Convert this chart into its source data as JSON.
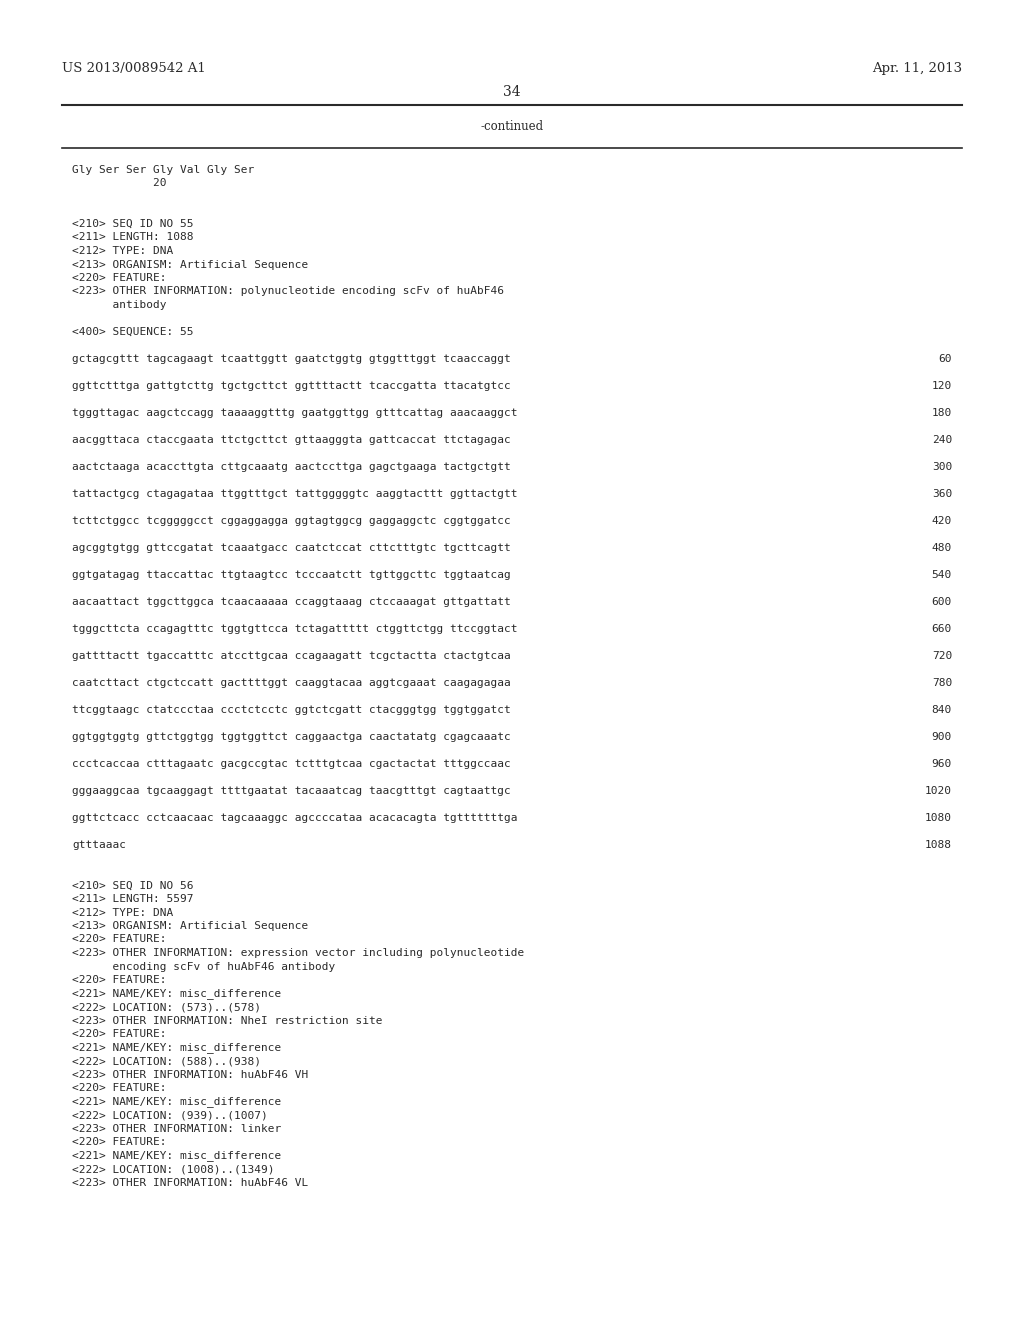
{
  "header_left": "US 2013/0089542 A1",
  "header_right": "Apr. 11, 2013",
  "page_number": "34",
  "continued_text": "-continued",
  "background_color": "#ffffff",
  "body_lines": [
    "Gly Ser Ser Gly Val Gly Ser",
    "            20",
    "",
    "",
    "<210> SEQ ID NO 55",
    "<211> LENGTH: 1088",
    "<212> TYPE: DNA",
    "<213> ORGANISM: Artificial Sequence",
    "<220> FEATURE:",
    "<223> OTHER INFORMATION: polynucleotide encoding scFv of huAbF46",
    "      antibody",
    "",
    "<400> SEQUENCE: 55",
    "",
    "gctagcgttt tagcagaagt tcaattggtt gaatctggtg gtggtttggt tcaaccaggt",
    "",
    "ggttctttga gattgtcttg tgctgcttct ggttttactt tcaccgatta ttacatgtcc",
    "",
    "tgggttagac aagctccagg taaaaggtttg gaatggttgg gtttcattag aaacaaggct",
    "",
    "aacggttaca ctaccgaata ttctgcttct gttaagggta gattcaccat ttctagagac",
    "",
    "aactctaaga acaccttgta cttgcaaatg aactccttga gagctgaaga tactgctgtt",
    "",
    "tattactgcg ctagagataa ttggtttgct tattgggggtc aaggtacttt ggttactgtt",
    "",
    "tcttctggcc tcgggggcct cggaggagga ggtagtggcg gaggaggctc cggtggatcc",
    "",
    "agcggtgtgg gttccgatat tcaaatgacc caatctccat cttctttgtc tgcttcagtt",
    "",
    "ggtgatagag ttaccattac ttgtaagtcc tcccaatctt tgttggcttc tggtaatcag",
    "",
    "aacaattact tggcttggca tcaacaaaaa ccaggtaaag ctccaaagat gttgattatt",
    "",
    "tgggcttcta ccagagtttc tggtgttcca tctagattttt ctggttctgg ttccggtact",
    "",
    "gattttactt tgaccatttc atccttgcaa ccagaagatt tcgctactta ctactgtcaa",
    "",
    "caatcttact ctgctccatt gacttttggt caaggtacaa aggtcgaaat caagagagaa",
    "",
    "ttcggtaagc ctatccctaa ccctctcctc ggtctcgatt ctacgggtgg tggtggatct",
    "",
    "ggtggtggtg gttctggtgg tggtggttct caggaactga caactatatg cgagcaaatc",
    "",
    "ccctcaccaa ctttagaatc gacgccgtac tctttgtcaa cgactactat tttggccaac",
    "",
    "gggaaggcaa tgcaaggagt ttttgaatat tacaaatcag taacgtttgt cagtaattgc",
    "",
    "ggttctcacc cctcaacaac tagcaaaggc agccccataa acacacagta tgtttttttga",
    "",
    "gtttaaac",
    "",
    "",
    "<210> SEQ ID NO 56",
    "<211> LENGTH: 5597",
    "<212> TYPE: DNA",
    "<213> ORGANISM: Artificial Sequence",
    "<220> FEATURE:",
    "<223> OTHER INFORMATION: expression vector including polynucleotide",
    "      encoding scFv of huAbF46 antibody",
    "<220> FEATURE:",
    "<221> NAME/KEY: misc_difference",
    "<222> LOCATION: (573)..(578)",
    "<223> OTHER INFORMATION: NheI restriction site",
    "<220> FEATURE:",
    "<221> NAME/KEY: misc_difference",
    "<222> LOCATION: (588)..(938)",
    "<223> OTHER INFORMATION: huAbF46 VH",
    "<220> FEATURE:",
    "<221> NAME/KEY: misc_difference",
    "<222> LOCATION: (939)..(1007)",
    "<223> OTHER INFORMATION: linker",
    "<220> FEATURE:",
    "<221> NAME/KEY: misc_difference",
    "<222> LOCATION: (1008)..(1349)",
    "<223> OTHER INFORMATION: huAbF46 VL"
  ],
  "line_numbers": {
    "14": "60",
    "16": "120",
    "18": "180",
    "20": "240",
    "22": "300",
    "24": "360",
    "26": "420",
    "28": "480",
    "30": "540",
    "32": "600",
    "34": "660",
    "36": "720",
    "38": "780",
    "40": "840",
    "42": "900",
    "44": "960",
    "46": "1020",
    "48": "1080",
    "50": "1088"
  }
}
